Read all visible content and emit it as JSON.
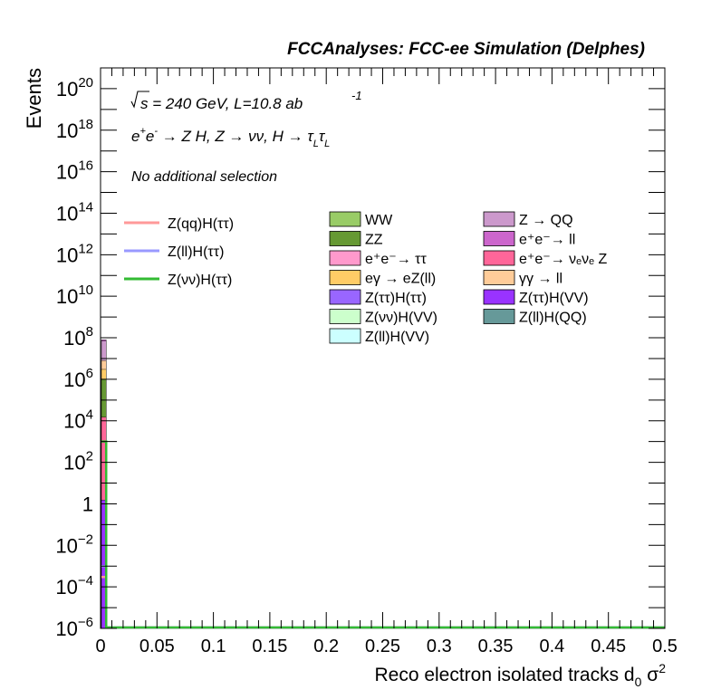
{
  "header": {
    "title": "FCCAnalyses: FCC-ee Simulation (Delphes)"
  },
  "annotations": {
    "sqrt_s": "s",
    "energy_lumi": " = 240 GeV, L=10.8 ab",
    "lumi_exp": "-1",
    "process": "e⁺e⁻ → Z H, Z → νν, H → τ_L τ_L",
    "process_parts": {
      "e": "e",
      "plus": "+",
      "e2": "e",
      "minus": "-",
      "arrow1": " → Z H, Z  → ",
      "nunu": "νν",
      "h": ", H → ",
      "tau1": "τ",
      "L1": "L",
      "tau2": "τ",
      "L2": "L"
    },
    "selection": "No additional selection"
  },
  "chart_data": {
    "type": "bar",
    "title": "FCCAnalyses: FCC-ee Simulation (Delphes)",
    "xlabel": "Reco electron isolated tracks d",
    "xlabel_sub": "0",
    "xlabel_tail": " σ",
    "xlabel_sup": "2",
    "ylabel": "Events",
    "xlim": [
      0,
      0.5
    ],
    "ylim": [
      1e-06,
      1e+21
    ],
    "yscale": "log",
    "grid": false,
    "legend_placement": "top-right",
    "x_ticks": [
      "0",
      "0.05",
      "0.1",
      "0.15",
      "0.2",
      "0.25",
      "0.3",
      "0.35",
      "0.4",
      "0.45",
      "0.5"
    ],
    "x_tick_values": [
      0,
      0.05,
      0.1,
      0.15,
      0.2,
      0.25,
      0.3,
      0.35,
      0.4,
      0.45,
      0.5
    ],
    "y_ticks": [
      {
        "exp": -6,
        "base": "10",
        "sup": "−6"
      },
      {
        "exp": -4,
        "base": "10",
        "sup": "−4"
      },
      {
        "exp": -2,
        "base": "10",
        "sup": "−2"
      },
      {
        "exp": 0,
        "base": "1",
        "sup": ""
      },
      {
        "exp": 2,
        "base": "10",
        "sup": "2"
      },
      {
        "exp": 4,
        "base": "10",
        "sup": "4"
      },
      {
        "exp": 6,
        "base": "10",
        "sup": "6"
      },
      {
        "exp": 8,
        "base": "10",
        "sup": "8"
      },
      {
        "exp": 10,
        "base": "10",
        "sup": "10"
      },
      {
        "exp": 12,
        "base": "10",
        "sup": "12"
      },
      {
        "exp": 14,
        "base": "10",
        "sup": "14"
      },
      {
        "exp": 16,
        "base": "10",
        "sup": "16"
      },
      {
        "exp": 18,
        "base": "10",
        "sup": "18"
      },
      {
        "exp": 20,
        "base": "10",
        "sup": "20"
      }
    ],
    "bin_width": 0.005,
    "stack_first_bin": [
      {
        "name": "ZZ",
        "color": "#669933",
        "top": 1000000.0
      },
      {
        "name": "eγ → eZ(ll)",
        "color": "#ffcc66",
        "top": 3000000.0
      },
      {
        "name": "γγ → ll",
        "color": "#ffcc99",
        "top": 8000000.0
      },
      {
        "name": "e⁺e⁻ → νₑνₑ Z",
        "color": "#ff6699",
        "top": 15000.0
      },
      {
        "name": "Z → QQ",
        "color": "#cc99cc",
        "top": 70000000.0
      },
      {
        "name": "e⁺e⁻ → ll",
        "color": "#cc66cc",
        "top": 80000000.0
      },
      {
        "name": "Z(ττ)H(VV)",
        "color": "#9933ff",
        "top": 1.5
      }
    ],
    "signal_series": [
      {
        "name": "Z(qq)H(ττ)",
        "color": "#ff9999",
        "first_bin_value": 0.0003
      },
      {
        "name": "Z(ll)H(ττ)",
        "color": "#9999ff",
        "first_bin_value": 0.001
      },
      {
        "name": "Z(νν)H(ττ)",
        "color": "#33bb33",
        "first_bin_value": 1000.0
      }
    ],
    "signal_legend": [
      {
        "name": "Z(qq)H(ττ)",
        "color": "#ff9999"
      },
      {
        "name": "Z(ll)H(ττ)",
        "color": "#9999ff"
      },
      {
        "name": "Z(νν)H(ττ)",
        "color": "#33bb33"
      }
    ],
    "background_legend_col1": [
      {
        "name": "WW",
        "color": "#99cc66"
      },
      {
        "name": "ZZ",
        "color": "#669933"
      },
      {
        "name": "e⁺e⁻→ ττ",
        "color": "#ff99cc"
      },
      {
        "name": "eγ → eZ(ll)",
        "color": "#ffcc66"
      },
      {
        "name": "Z(ττ)H(ττ)",
        "color": "#9966ff"
      },
      {
        "name": "Z(νν)H(VV)",
        "color": "#ccffcc"
      },
      {
        "name": "Z(ll)H(VV)",
        "color": "#ccffff"
      }
    ],
    "background_legend_col2": [
      {
        "name": "Z → QQ",
        "color": "#cc99cc"
      },
      {
        "name": "e⁺e⁻→ ll",
        "color": "#cc66cc"
      },
      {
        "name": "e⁺e⁻→ νₑνₑ Z",
        "color": "#ff6699"
      },
      {
        "name": "γγ → ll",
        "color": "#ffcc99"
      },
      {
        "name": "Z(ττ)H(VV)",
        "color": "#9933ff"
      },
      {
        "name": "Z(ll)H(QQ)",
        "color": "#669999"
      }
    ]
  }
}
